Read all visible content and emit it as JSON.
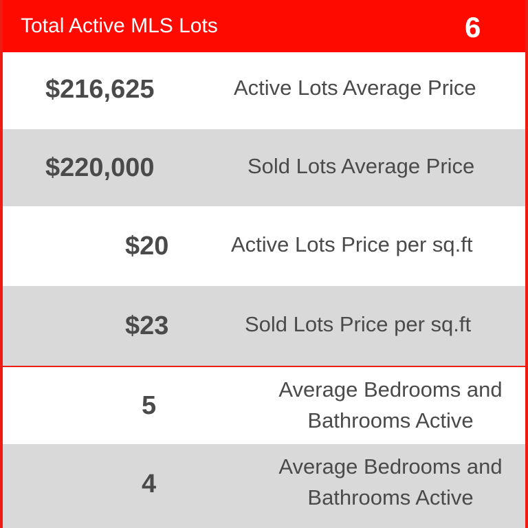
{
  "header": {
    "title": "Total Active MLS Lots",
    "count": "6"
  },
  "rows": [
    {
      "value": "$216,625",
      "label": "Active Lots Average Price"
    },
    {
      "value": "$220,000",
      "label": "Sold Lots Average Price"
    },
    {
      "value": "$20",
      "label": "Active Lots Price per sq.ft"
    },
    {
      "value": "$23",
      "label": "Sold Lots Price per sq.ft"
    },
    {
      "value": "5",
      "label_line1": "Average Bedrooms and",
      "label_line2": "Bathrooms Active"
    },
    {
      "value": "4",
      "label_line1": "Average Bedrooms and",
      "label_line2": "Bathrooms Active"
    }
  ],
  "colors": {
    "accent": "#ff0a00",
    "border": "#ee1c12",
    "stripe": "#d9d9d9",
    "text": "#4a4a4a"
  }
}
